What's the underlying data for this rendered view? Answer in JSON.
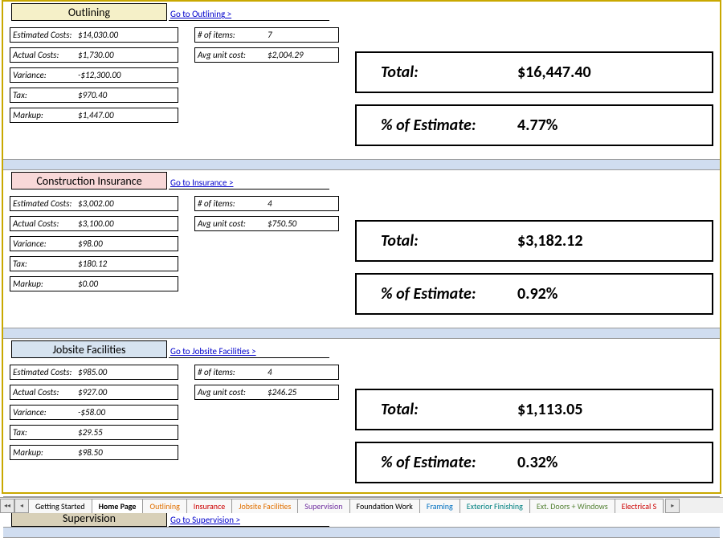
{
  "sections": [
    {
      "title": "Outlining",
      "bg": "bg-yellow",
      "link": "Go to Outlining >",
      "fields": [
        {
          "label": "Estimated Costs:",
          "value": "$14,030.00"
        },
        {
          "label": "Actual Costs:",
          "value": "$1,730.00"
        },
        {
          "label": "Variance:",
          "value": "-$12,300.00"
        },
        {
          "label": "Tax:",
          "value": "$970.40"
        },
        {
          "label": "Markup:",
          "value": "$1,447.00"
        }
      ],
      "mid": [
        {
          "label": "# of items:",
          "value": "7"
        },
        {
          "label": "Avg unit cost:",
          "value": "$2,004.29"
        }
      ],
      "total": "$16,447.40",
      "pct": "4.77%"
    },
    {
      "title": "Construction Insurance",
      "bg": "bg-pink",
      "link": "Go to Insurance >",
      "fields": [
        {
          "label": "Estimated Costs:",
          "value": "$3,002.00"
        },
        {
          "label": "Actual Costs:",
          "value": "$3,100.00"
        },
        {
          "label": "Variance:",
          "value": "$98.00"
        },
        {
          "label": "Tax:",
          "value": "$180.12"
        },
        {
          "label": "Markup:",
          "value": "$0.00"
        }
      ],
      "mid": [
        {
          "label": "# of items:",
          "value": "4"
        },
        {
          "label": "Avg unit cost:",
          "value": "$750.50"
        }
      ],
      "total": "$3,182.12",
      "pct": "0.92%"
    },
    {
      "title": "Jobsite Facilities",
      "bg": "bg-blue",
      "link": "Go to Jobsite Facilities >",
      "fields": [
        {
          "label": "Estimated Costs:",
          "value": "$985.00"
        },
        {
          "label": "Actual Costs:",
          "value": "$927.00"
        },
        {
          "label": "Variance:",
          "value": "-$58.00"
        },
        {
          "label": "Tax:",
          "value": "$29.55"
        },
        {
          "label": "Markup:",
          "value": "$98.50"
        }
      ],
      "mid": [
        {
          "label": "# of items:",
          "value": "4"
        },
        {
          "label": "Avg unit cost:",
          "value": "$246.25"
        }
      ],
      "total": "$1,113.05",
      "pct": "0.32%"
    },
    {
      "title": "Supervision",
      "bg": "bg-tan",
      "link": "Go to Supervision >",
      "fields": [],
      "mid": [],
      "total": "",
      "pct": ""
    }
  ],
  "labels": {
    "total": "Total:",
    "pct": "% of Estimate:"
  },
  "tabs": [
    {
      "text": "Getting Started",
      "color": ""
    },
    {
      "text": "Home Page",
      "color": "",
      "active": true
    },
    {
      "text": "Outlining",
      "color": "c-orange"
    },
    {
      "text": "Insurance",
      "color": "c-red"
    },
    {
      "text": "Jobsite Facilities",
      "color": "c-orange"
    },
    {
      "text": "Supervision",
      "color": "c-purple"
    },
    {
      "text": "Foundation Work",
      "color": ""
    },
    {
      "text": "Framing",
      "color": "c-blue"
    },
    {
      "text": "Exterior Finishing",
      "color": "c-teal"
    },
    {
      "text": "Ext. Doors + Windows",
      "color": "c-green"
    },
    {
      "text": "Electrical S",
      "color": "c-red"
    }
  ]
}
